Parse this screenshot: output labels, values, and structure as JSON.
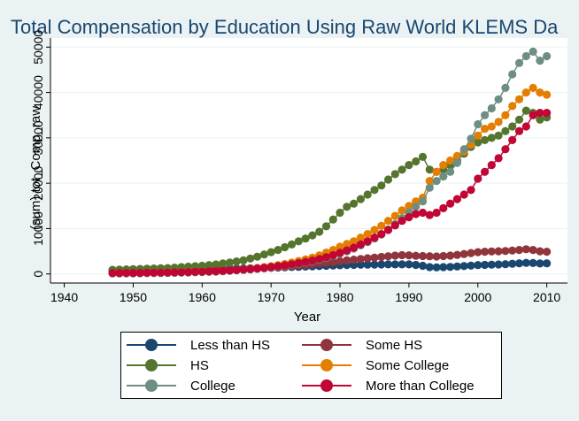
{
  "chart_data": {
    "type": "line",
    "title": "Total Compensation by Education Using Raw World KLEMS Da",
    "xlabel": "Year",
    "ylabel": "(sum) tot_Comp_raw",
    "xlim": [
      1938,
      2013
    ],
    "ylim": [
      -2000,
      52000
    ],
    "x_ticks": [
      1940,
      1950,
      1960,
      1970,
      1980,
      1990,
      2000,
      2010
    ],
    "y_ticks": [
      0,
      10000,
      20000,
      30000,
      40000,
      50000
    ],
    "x_tick_labels": [
      "1940",
      "1950",
      "1960",
      "1970",
      "1980",
      "1990",
      "2000",
      "2010"
    ],
    "y_tick_labels": [
      "0",
      "10000",
      "20000",
      "30000",
      "40000",
      "50000"
    ],
    "grid": true,
    "legend_placement": "bottom",
    "x": [
      1947,
      1948,
      1949,
      1950,
      1951,
      1952,
      1953,
      1954,
      1955,
      1956,
      1957,
      1958,
      1959,
      1960,
      1961,
      1962,
      1963,
      1964,
      1965,
      1966,
      1967,
      1968,
      1969,
      1970,
      1971,
      1972,
      1973,
      1974,
      1975,
      1976,
      1977,
      1978,
      1979,
      1980,
      1981,
      1982,
      1983,
      1984,
      1985,
      1986,
      1987,
      1988,
      1989,
      1990,
      1991,
      1992,
      1993,
      1994,
      1995,
      1996,
      1997,
      1998,
      1999,
      2000,
      2001,
      2002,
      2003,
      2004,
      2005,
      2006,
      2007,
      2008,
      2009,
      2010
    ],
    "series": [
      {
        "name": "Less than HS",
        "color": "#1a476f",
        "values": [
          800,
          820,
          840,
          860,
          880,
          900,
          920,
          940,
          960,
          980,
          1000,
          1020,
          1040,
          1060,
          1080,
          1100,
          1130,
          1160,
          1190,
          1220,
          1260,
          1300,
          1340,
          1380,
          1420,
          1470,
          1520,
          1570,
          1620,
          1680,
          1740,
          1800,
          1860,
          1920,
          1970,
          2000,
          2030,
          2060,
          2080,
          2100,
          2110,
          2120,
          2120,
          2110,
          2000,
          1800,
          1500,
          1450,
          1500,
          1550,
          1650,
          1750,
          1850,
          1950,
          2000,
          2050,
          2100,
          2150,
          2250,
          2350,
          2450,
          2400,
          2300,
          2350
        ]
      },
      {
        "name": "Some HS",
        "color": "#90353b",
        "values": [
          400,
          420,
          440,
          460,
          480,
          500,
          520,
          540,
          560,
          580,
          600,
          630,
          660,
          700,
          740,
          780,
          830,
          880,
          940,
          1000,
          1070,
          1150,
          1240,
          1340,
          1450,
          1570,
          1700,
          1850,
          2000,
          2150,
          2300,
          2450,
          2600,
          2800,
          3000,
          3150,
          3300,
          3450,
          3600,
          3750,
          3900,
          4050,
          4150,
          4100,
          4000,
          3950,
          3900,
          3850,
          3950,
          4050,
          4200,
          4400,
          4600,
          4800,
          4900,
          4950,
          5000,
          5050,
          5150,
          5300,
          5450,
          5300,
          5000,
          4900
        ]
      },
      {
        "name": "HS",
        "color": "#55752f",
        "values": [
          900,
          950,
          1000,
          1050,
          1100,
          1150,
          1200,
          1250,
          1300,
          1400,
          1500,
          1600,
          1700,
          1800,
          1950,
          2100,
          2300,
          2500,
          2750,
          3000,
          3400,
          3800,
          4300,
          4800,
          5300,
          5900,
          6500,
          7200,
          7800,
          8500,
          9300,
          10500,
          12000,
          13500,
          14800,
          15500,
          16500,
          17500,
          18500,
          19500,
          20800,
          22000,
          23000,
          24000,
          24800,
          25800,
          23000,
          22500,
          23000,
          24000,
          25000,
          26500,
          28000,
          29000,
          29500,
          30000,
          30500,
          31500,
          32500,
          34000,
          36000,
          35500,
          34000,
          34500
        ]
      },
      {
        "name": "Some College",
        "color": "#e37e00",
        "values": [
          200,
          210,
          220,
          240,
          260,
          280,
          300,
          320,
          350,
          380,
          410,
          450,
          500,
          550,
          600,
          660,
          730,
          810,
          900,
          1000,
          1150,
          1300,
          1500,
          1700,
          1950,
          2200,
          2500,
          2850,
          3200,
          3600,
          4100,
          4700,
          5300,
          6000,
          6600,
          7200,
          8000,
          8800,
          9700,
          10600,
          11700,
          12800,
          14000,
          15000,
          16000,
          16800,
          20500,
          22500,
          24000,
          25000,
          26000,
          27000,
          28500,
          30500,
          32000,
          32500,
          33500,
          35000,
          37000,
          38500,
          40000,
          41000,
          40000,
          39500
        ]
      },
      {
        "name": "College",
        "color": "#6e8e84",
        "values": [
          100,
          110,
          120,
          130,
          140,
          160,
          180,
          200,
          220,
          250,
          280,
          320,
          360,
          410,
          460,
          520,
          590,
          670,
          760,
          860,
          980,
          1110,
          1260,
          1420,
          1600,
          1800,
          2020,
          2260,
          2520,
          2800,
          3150,
          3550,
          4000,
          4500,
          5000,
          5600,
          6300,
          7000,
          7800,
          8700,
          9800,
          11000,
          12300,
          13600,
          14800,
          16000,
          19000,
          20500,
          21500,
          22500,
          24500,
          27500,
          29800,
          33000,
          35000,
          36500,
          38500,
          41000,
          44000,
          46500,
          48000,
          49000,
          47000,
          48000
        ]
      },
      {
        "name": "More than College",
        "color": "#c10534",
        "values": [
          200,
          210,
          220,
          230,
          240,
          260,
          280,
          300,
          320,
          350,
          380,
          420,
          460,
          510,
          560,
          620,
          690,
          770,
          860,
          960,
          1080,
          1210,
          1360,
          1520,
          1700,
          1900,
          2130,
          2380,
          2650,
          2950,
          3300,
          3700,
          4150,
          4650,
          5200,
          5800,
          6500,
          7200,
          8000,
          8800,
          9700,
          10700,
          11700,
          12500,
          13200,
          13500,
          13000,
          13500,
          14500,
          15500,
          16500,
          17500,
          18500,
          21000,
          22500,
          24000,
          25500,
          27500,
          29500,
          31500,
          32500,
          35000,
          35500,
          35500
        ]
      }
    ]
  }
}
